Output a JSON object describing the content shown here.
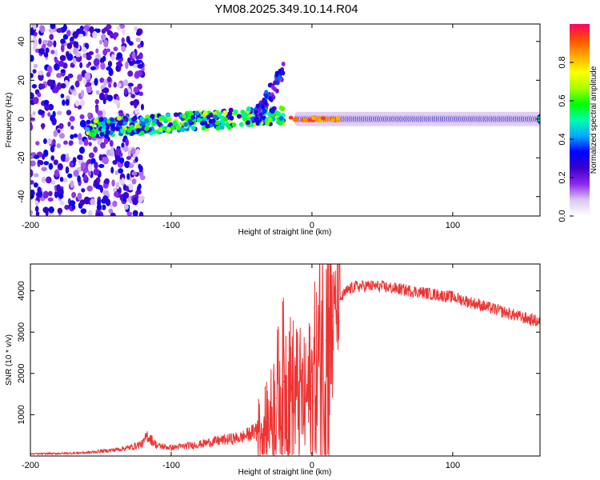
{
  "title": "YM08.2025.349.10.14.R04",
  "chart_data": [
    {
      "type": "heatmap",
      "name": "spectrogram",
      "title": "YM08.2025.349.10.14.R04",
      "xlabel": "Height of straight line (km)",
      "ylabel": "Frequency (Hz)",
      "xlim": [
        -200,
        162
      ],
      "ylim": [
        -50,
        49
      ],
      "xticks": [
        -200,
        -100,
        0,
        100
      ],
      "yticks": [
        -40,
        -20,
        0,
        20,
        40
      ],
      "colorbar": {
        "label": "Normalized spectral amplitude",
        "range": [
          0,
          1
        ],
        "ticks": [
          0.0,
          0.2,
          0.4,
          0.6,
          0.8
        ],
        "colors": [
          "#ffffff",
          "#dcc8f0",
          "#8c28f0",
          "#3c00c8",
          "#0000ff",
          "#00aaff",
          "#00ffaa",
          "#00ff00",
          "#aaff00",
          "#ffff00",
          "#ffaa00",
          "#ff5000",
          "#ff0064"
        ]
      },
      "features": [
        {
          "label": "scattered noise region",
          "x_range": [
            -200,
            -120
          ],
          "freq_range": [
            -50,
            49
          ],
          "amplitude": 0.2
        },
        {
          "label": "dispersed signal track",
          "x_range": [
            -160,
            -20
          ],
          "freq_center": -5,
          "amplitude": 0.45
        },
        {
          "label": "rising wing",
          "x_range": [
            -40,
            -20
          ],
          "freq_range": [
            0,
            25
          ],
          "amplitude": 0.25
        },
        {
          "label": "carrier line",
          "x_range": [
            -10,
            162
          ],
          "freq_center": 0,
          "amplitude": 0.6
        },
        {
          "label": "carrier peak",
          "x_range": [
            -15,
            20
          ],
          "freq_center": 0,
          "amplitude": 0.95
        }
      ]
    },
    {
      "type": "line",
      "name": "snr",
      "xlabel": "Height of straight line (km)",
      "ylabel": "SNR (10 * v/v)",
      "xlim": [
        -200,
        162
      ],
      "ylim": [
        0,
        4650
      ],
      "xticks": [
        -200,
        -100,
        0,
        100
      ],
      "yticks": [
        1000,
        2000,
        3000,
        4000
      ],
      "color": "#ee3333",
      "x": [
        -200,
        -180,
        -160,
        -140,
        -130,
        -120,
        -117,
        -110,
        -100,
        -80,
        -70,
        -60,
        -50,
        -40,
        -30,
        -25,
        -20,
        -15,
        -10,
        -5,
        0,
        5,
        10,
        15,
        20,
        25,
        30,
        40,
        50,
        60,
        70,
        80,
        90,
        100,
        110,
        120,
        130,
        140,
        150,
        162
      ],
      "y": [
        50,
        60,
        80,
        150,
        200,
        300,
        500,
        250,
        200,
        280,
        350,
        400,
        450,
        600,
        900,
        1400,
        1800,
        1600,
        1500,
        1300,
        1700,
        2300,
        2800,
        3400,
        3800,
        4000,
        4100,
        4120,
        4100,
        4050,
        4000,
        3950,
        3900,
        3850,
        3750,
        3650,
        3550,
        3450,
        3350,
        3250
      ]
    }
  ]
}
